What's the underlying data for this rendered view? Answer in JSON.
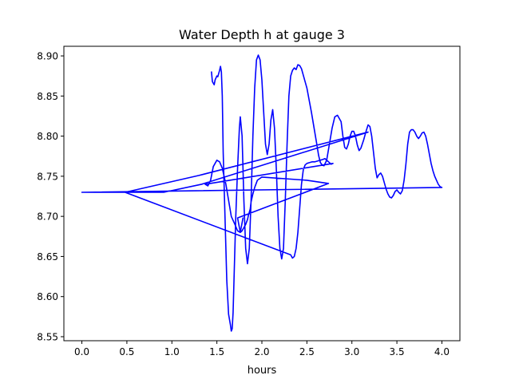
{
  "chart_data": {
    "type": "line",
    "title": "Water Depth h at gauge 3",
    "xlabel": "hours",
    "ylabel": "",
    "xlim": [
      -0.2,
      4.2
    ],
    "ylim": [
      8.545,
      8.912
    ],
    "xticks": [
      0.0,
      0.5,
      1.0,
      1.5,
      2.0,
      2.5,
      3.0,
      3.5,
      4.0
    ],
    "xtick_labels": [
      "0.0",
      "0.5",
      "1.0",
      "1.5",
      "2.0",
      "2.5",
      "3.0",
      "3.5",
      "4.0"
    ],
    "yticks": [
      8.55,
      8.6,
      8.65,
      8.7,
      8.75,
      8.8,
      8.85,
      8.9
    ],
    "ytick_labels": [
      "8.55",
      "8.60",
      "8.65",
      "8.70",
      "8.75",
      "8.80",
      "8.85",
      "8.90"
    ],
    "grid": false,
    "legend": "none",
    "series": [
      {
        "color": "#0000ff",
        "x": [
          1.44,
          1.45,
          1.46,
          1.47,
          1.48,
          1.5,
          1.51,
          1.52,
          1.53,
          1.54,
          1.55,
          1.56,
          1.57,
          1.59,
          1.61,
          1.63,
          1.65,
          1.66,
          1.67,
          1.68,
          1.69,
          1.71,
          1.73,
          1.75,
          1.76,
          1.78,
          1.8,
          1.82,
          1.84,
          1.86,
          1.88,
          1.9,
          1.92,
          1.94,
          1.96,
          1.98,
          2.0,
          2.02,
          2.04,
          2.06,
          2.08,
          2.1,
          2.12,
          2.14,
          2.16,
          2.18,
          2.2,
          2.22,
          2.24,
          2.26,
          2.28,
          2.3,
          2.32,
          2.34,
          2.36,
          2.38,
          2.4,
          2.42,
          2.44,
          2.46,
          2.5,
          2.55,
          2.58,
          2.61,
          2.63,
          2.65,
          2.67,
          2.69,
          2.72,
          2.75,
          2.78,
          2.81,
          2.84,
          2.88,
          2.9,
          2.92,
          2.94,
          2.96,
          2.98,
          3.0,
          3.02,
          3.04,
          3.06,
          3.08,
          3.1,
          3.13,
          3.16,
          3.18,
          3.2,
          3.22,
          3.24,
          3.26,
          3.28,
          3.3,
          3.32,
          3.34,
          3.36,
          3.38,
          3.4,
          3.42,
          3.44,
          3.46,
          3.48,
          3.5,
          3.52,
          3.54,
          3.56,
          3.58,
          3.6,
          3.62,
          3.64,
          3.66,
          3.68,
          3.7,
          3.72,
          3.74,
          3.76,
          3.78,
          3.8,
          3.82,
          3.84,
          3.86,
          3.88,
          3.9,
          3.92,
          3.94,
          3.96,
          3.98,
          4.0,
          0.0,
          0.48,
          0.91,
          1.33,
          3.18,
          1.3,
          0.48,
          2.32,
          2.34,
          2.36,
          2.38,
          2.4,
          2.42,
          2.44,
          2.46,
          2.48,
          2.5,
          2.53,
          2.56,
          2.59,
          2.62,
          2.65,
          2.68,
          2.7,
          2.72,
          2.75,
          2.77,
          2.79,
          1.37,
          1.4,
          1.43,
          1.46,
          1.5,
          1.53,
          1.56,
          1.6,
          1.63,
          1.66,
          1.7,
          1.73,
          1.76,
          1.78,
          1.8,
          1.82,
          1.84,
          1.85,
          1.86,
          1.87,
          1.88,
          1.9,
          1.92,
          1.95,
          2.0,
          2.5,
          2.74,
          1.73,
          1.76,
          1.79
        ],
        "y": [
          8.88,
          8.868,
          8.866,
          8.864,
          8.87,
          8.875,
          8.874,
          8.878,
          8.882,
          8.887,
          8.88,
          8.85,
          8.78,
          8.7,
          8.62,
          8.578,
          8.565,
          8.557,
          8.56,
          8.58,
          8.62,
          8.7,
          8.76,
          8.81,
          8.824,
          8.8,
          8.72,
          8.66,
          8.641,
          8.66,
          8.72,
          8.8,
          8.86,
          8.895,
          8.901,
          8.895,
          8.87,
          8.83,
          8.79,
          8.777,
          8.79,
          8.82,
          8.833,
          8.81,
          8.76,
          8.7,
          8.66,
          8.647,
          8.66,
          8.72,
          8.79,
          8.85,
          8.875,
          8.882,
          8.885,
          8.883,
          8.889,
          8.888,
          8.884,
          8.876,
          8.86,
          8.83,
          8.81,
          8.79,
          8.776,
          8.767,
          8.764,
          8.763,
          8.77,
          8.79,
          8.81,
          8.824,
          8.826,
          8.818,
          8.8,
          8.786,
          8.784,
          8.79,
          8.8,
          8.806,
          8.806,
          8.8,
          8.789,
          8.782,
          8.785,
          8.795,
          8.807,
          8.814,
          8.812,
          8.8,
          8.78,
          8.76,
          8.748,
          8.752,
          8.754,
          8.75,
          8.742,
          8.734,
          8.728,
          8.724,
          8.723,
          8.726,
          8.731,
          8.733,
          8.73,
          8.728,
          8.732,
          8.745,
          8.765,
          8.79,
          8.805,
          8.808,
          8.808,
          8.805,
          8.8,
          8.797,
          8.8,
          8.804,
          8.805,
          8.8,
          8.79,
          8.778,
          8.766,
          8.757,
          8.75,
          8.745,
          8.74,
          8.737,
          8.736,
          8.73,
          8.73,
          8.73,
          8.74,
          8.805,
          8.751,
          8.73,
          8.652,
          8.648,
          8.65,
          8.66,
          8.68,
          8.71,
          8.74,
          8.758,
          8.764,
          8.766,
          8.767,
          8.768,
          8.768,
          8.769,
          8.77,
          8.771,
          8.772,
          8.77,
          8.767,
          8.765,
          8.766,
          8.74,
          8.738,
          8.745,
          8.762,
          8.77,
          8.768,
          8.76,
          8.74,
          8.72,
          8.7,
          8.69,
          8.682,
          8.68,
          8.682,
          8.686,
          8.69,
          8.696,
          8.701,
          8.705,
          8.709,
          8.718,
          8.728,
          8.736,
          8.745,
          8.749,
          8.745,
          8.741,
          8.698,
          8.68,
          8.698
        ]
      }
    ]
  }
}
